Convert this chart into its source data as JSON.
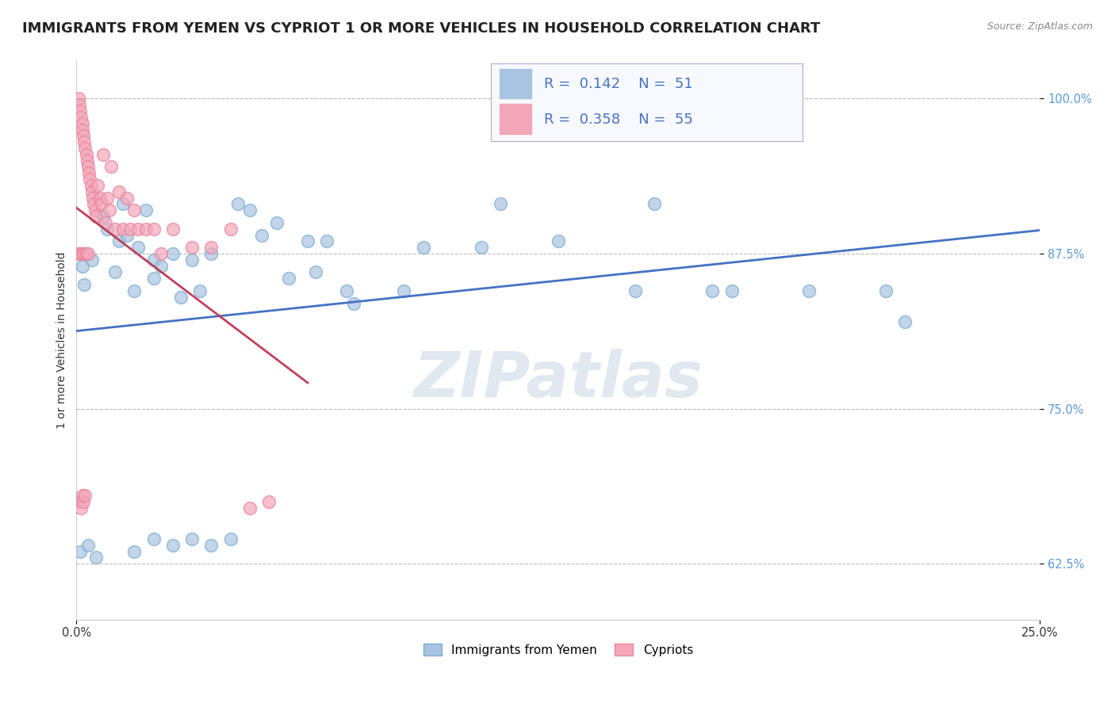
{
  "title": "IMMIGRANTS FROM YEMEN VS CYPRIOT 1 OR MORE VEHICLES IN HOUSEHOLD CORRELATION CHART",
  "source": "Source: ZipAtlas.com",
  "ylabel": "1 or more Vehicles in Household",
  "xlim": [
    0.0,
    25.0
  ],
  "ylim": [
    58.0,
    103.0
  ],
  "xticks": [
    0.0,
    25.0
  ],
  "xticklabels": [
    "0.0%",
    "25.0%"
  ],
  "yticks": [
    62.5,
    75.0,
    87.5,
    100.0
  ],
  "yticklabels": [
    "62.5%",
    "75.0%",
    "87.5%",
    "100.0%"
  ],
  "blue_color": "#a8c4e0",
  "pink_color": "#f4a7b9",
  "blue_edge_color": "#7aadd4",
  "pink_edge_color": "#e8849a",
  "blue_line_color": "#4472C4",
  "pink_line_color": "#C0405A",
  "R_blue": 0.142,
  "N_blue": 51,
  "R_pink": 0.358,
  "N_pink": 55,
  "background_color": "#ffffff",
  "grid_color": "#bbbbbb",
  "title_fontsize": 13,
  "axis_label_fontsize": 10,
  "tick_fontsize": 10.5,
  "legend_fontsize": 13,
  "marker_size": 130,
  "watermark_text": "ZIPatlas",
  "watermark_color": "#e0e8f0",
  "legend_label_blue": "Immigrants from Yemen",
  "legend_label_pink": "Cypriots"
}
